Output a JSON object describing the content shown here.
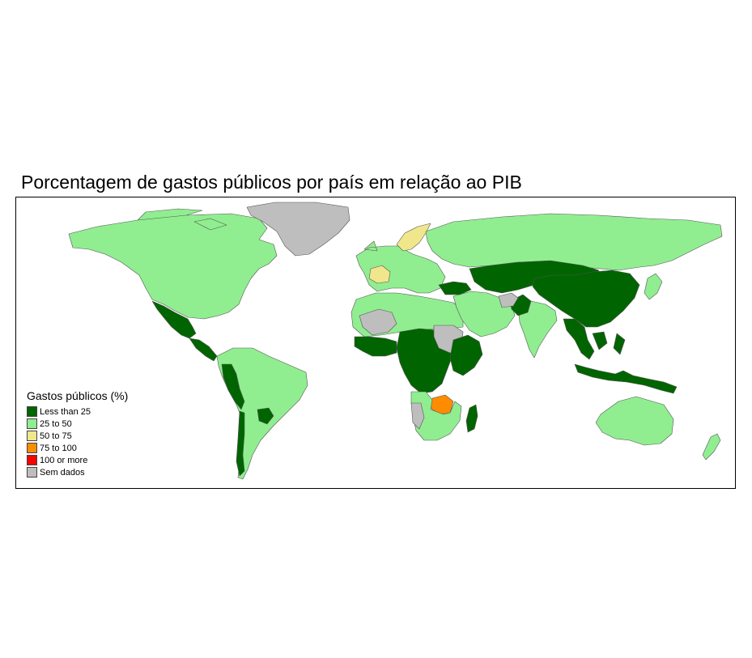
{
  "title": "Porcentagem de gastos públicos por país em relação ao PIB",
  "legend": {
    "title": "Gastos públicos (%)",
    "items": [
      {
        "label": "Less than 25",
        "color": "#006400"
      },
      {
        "label": "25 to 50",
        "color": "#90ee90"
      },
      {
        "label": "50 to 75",
        "color": "#f0e68c"
      },
      {
        "label": "75 to 100",
        "color": "#ff8c00"
      },
      {
        "label": "100 or more",
        "color": "#ff0000"
      },
      {
        "label": "Sem dados",
        "color": "#bebebe"
      }
    ]
  },
  "map": {
    "border_color": "#555555",
    "regions": [
      {
        "name": "north-america",
        "class": "25 to 50"
      },
      {
        "name": "greenland",
        "class": "Sem dados"
      },
      {
        "name": "mexico",
        "class": "Less than 25"
      },
      {
        "name": "central-america",
        "class": "Less than 25"
      },
      {
        "name": "south-america",
        "class": "25 to 50"
      },
      {
        "name": "peru-ecuador",
        "class": "Less than 25"
      },
      {
        "name": "paraguay",
        "class": "Less than 25"
      },
      {
        "name": "chile",
        "class": "Less than 25"
      },
      {
        "name": "europe",
        "class": "25 to 50"
      },
      {
        "name": "scandinavia",
        "class": "50 to 75"
      },
      {
        "name": "france",
        "class": "50 to 75"
      },
      {
        "name": "russia",
        "class": "25 to 50"
      },
      {
        "name": "north-africa",
        "class": "25 to 50"
      },
      {
        "name": "sahara",
        "class": "Sem dados"
      },
      {
        "name": "central-africa",
        "class": "Less than 25"
      },
      {
        "name": "west-africa",
        "class": "Less than 25"
      },
      {
        "name": "sudan",
        "class": "Sem dados"
      },
      {
        "name": "east-africa",
        "class": "Less than 25"
      },
      {
        "name": "zimbabwe",
        "class": "75 to 100"
      },
      {
        "name": "southern-africa",
        "class": "25 to 50"
      },
      {
        "name": "namibia",
        "class": "Sem dados"
      },
      {
        "name": "madagascar",
        "class": "Less than 25"
      },
      {
        "name": "middle-east",
        "class": "25 to 50"
      },
      {
        "name": "turkey",
        "class": "Less than 25"
      },
      {
        "name": "central-asia",
        "class": "Less than 25"
      },
      {
        "name": "china",
        "class": "Less than 25"
      },
      {
        "name": "india",
        "class": "25 to 50"
      },
      {
        "name": "pakistan",
        "class": "Less than 25"
      },
      {
        "name": "afghanistan",
        "class": "Sem dados"
      },
      {
        "name": "southeast-asia",
        "class": "Less than 25"
      },
      {
        "name": "indonesia",
        "class": "Less than 25"
      },
      {
        "name": "japan",
        "class": "25 to 50"
      },
      {
        "name": "australia",
        "class": "25 to 50"
      },
      {
        "name": "new-zealand",
        "class": "25 to 50"
      }
    ]
  }
}
